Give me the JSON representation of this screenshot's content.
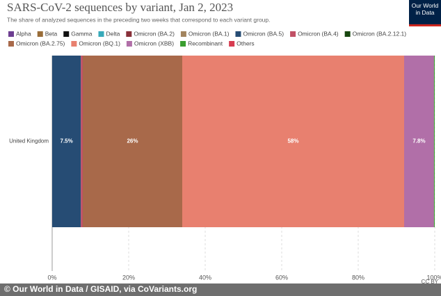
{
  "chart_data": {
    "type": "stacked-bar-horizontal",
    "title": "SARS-CoV-2 sequences by variant, Jan 2, 2023",
    "subtitle": "The share of analyzed sequences in the preceding two weeks that correspond to each variant group.",
    "logo": "Our World in Data",
    "license": "CC BY",
    "credit": "© Our World in Data / GISAID, via CoVariants.org",
    "categories": [
      "United Kingdom"
    ],
    "series": [
      {
        "name": "Alpha",
        "color": "#6d3e91",
        "values": [
          0
        ]
      },
      {
        "name": "Beta",
        "color": "#996d39",
        "values": [
          0
        ]
      },
      {
        "name": "Gamma",
        "color": "#111111",
        "values": [
          0
        ]
      },
      {
        "name": "Delta",
        "color": "#38aaba",
        "values": [
          0
        ]
      },
      {
        "name": "Omicron (BA.2)",
        "color": "#883039",
        "values": [
          0
        ]
      },
      {
        "name": "Omicron (BA.1)",
        "color": "#a2845e",
        "values": [
          0
        ]
      },
      {
        "name": "Omicron (BA.5)",
        "color": "#264c74",
        "values": [
          7.5
        ],
        "value_labels": [
          "7.5%"
        ]
      },
      {
        "name": "Omicron (BA.4)",
        "color": "#c15065",
        "values": [
          0.5
        ]
      },
      {
        "name": "Omicron (BA.2.12.1)",
        "color": "#18470f",
        "values": [
          0
        ]
      },
      {
        "name": "Omicron (BA.2.75)",
        "color": "#a8694a",
        "values": [
          26
        ],
        "value_labels": [
          "26%"
        ]
      },
      {
        "name": "Omicron (BQ.1)",
        "color": "#e8806f",
        "values": [
          58
        ],
        "value_labels": [
          "58%"
        ]
      },
      {
        "name": "Omicron (XBB)",
        "color": "#b16fa8",
        "values": [
          7.8
        ],
        "value_labels": [
          "7.8%"
        ]
      },
      {
        "name": "Recombinant",
        "color": "#3a9e2f",
        "values": [
          0.2
        ]
      },
      {
        "name": "Others",
        "color": "#d73c50",
        "values": [
          0
        ]
      }
    ],
    "xlim": [
      0,
      100
    ],
    "xticks": [
      {
        "value": 0,
        "label": "0%"
      },
      {
        "value": 20,
        "label": "20%"
      },
      {
        "value": 40,
        "label": "40%"
      },
      {
        "value": 60,
        "label": "60%"
      },
      {
        "value": 80,
        "label": "80%"
      },
      {
        "value": 100,
        "label": "100%"
      }
    ],
    "grid": true
  }
}
